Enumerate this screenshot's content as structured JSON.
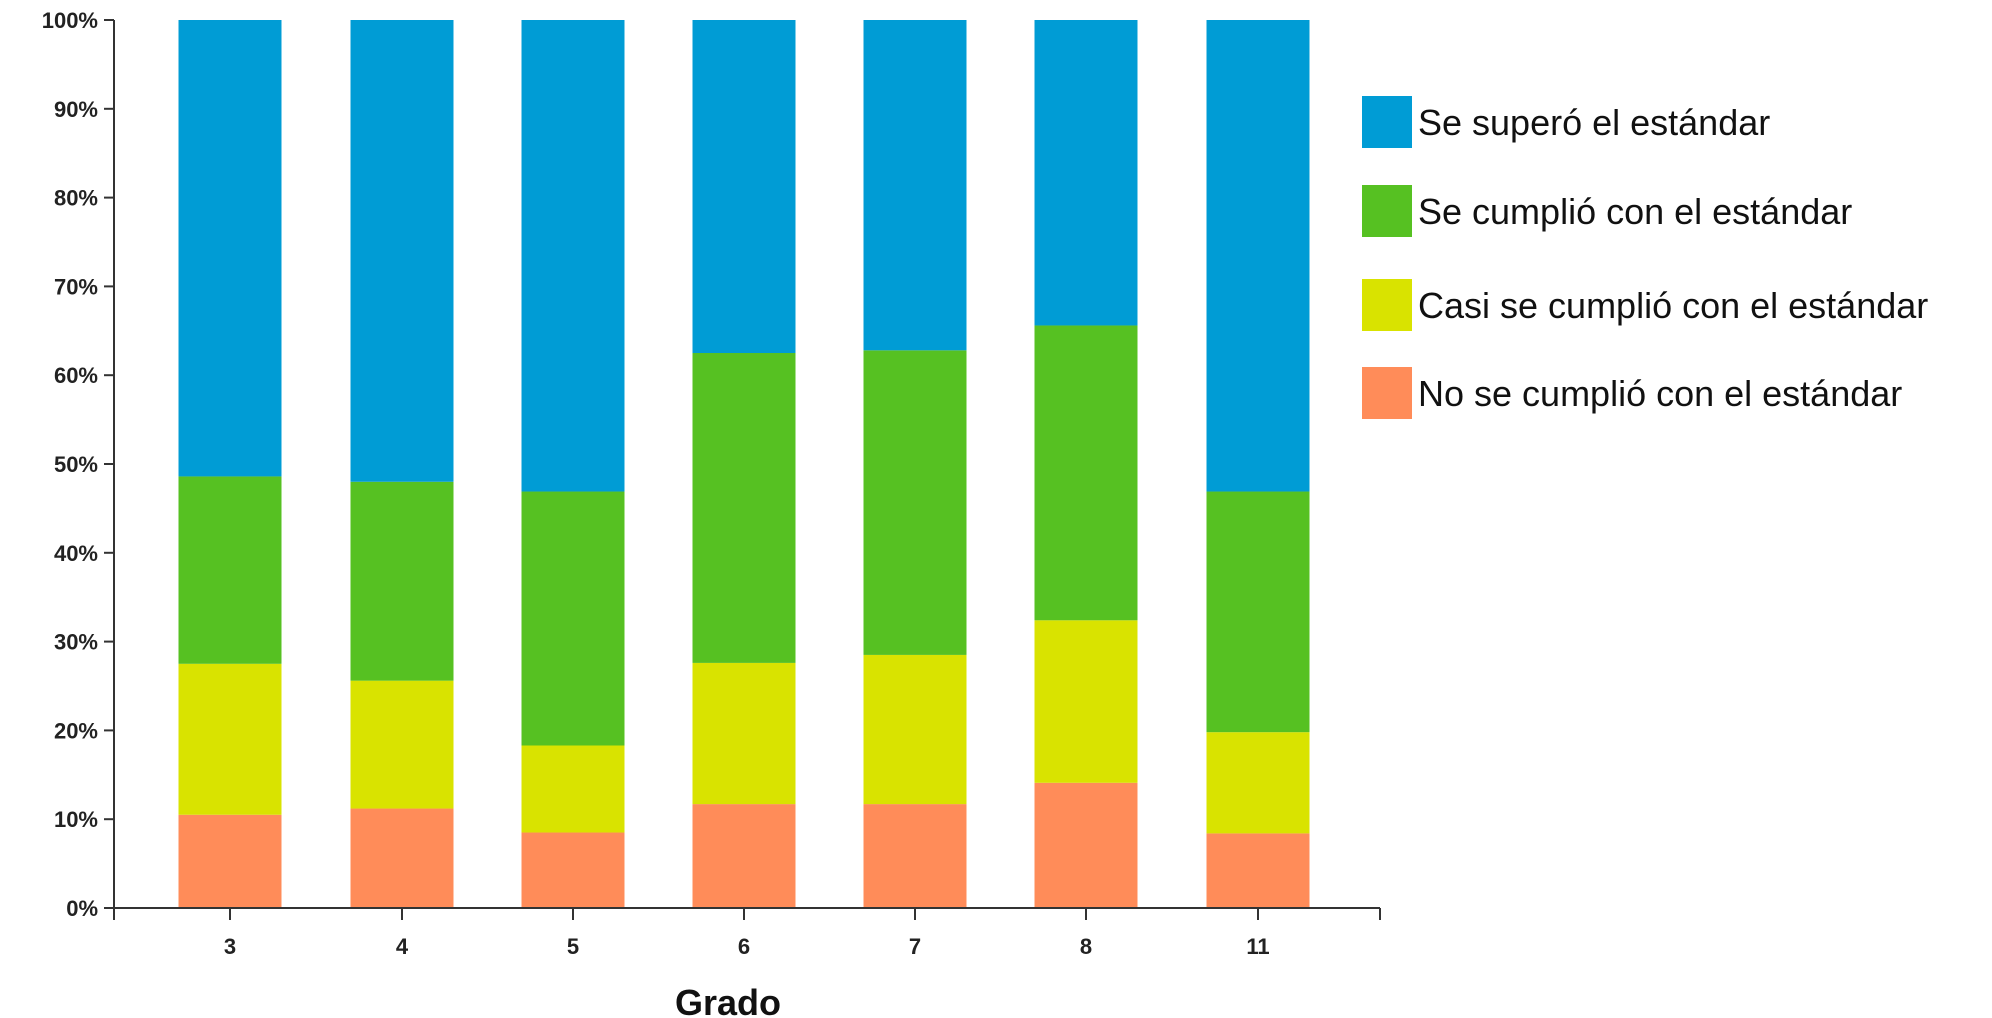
{
  "chart_data": {
    "type": "bar",
    "stacked": true,
    "categories": [
      "3",
      "4",
      "5",
      "6",
      "7",
      "8",
      "11"
    ],
    "xlabel": "Grado",
    "ylabel": "",
    "ylim": [
      0,
      100
    ],
    "y_ticks": [
      "0%",
      "10%",
      "20%",
      "30%",
      "40%",
      "50%",
      "60%",
      "70%",
      "80%",
      "90%",
      "100%"
    ],
    "legend_position": "right",
    "series": [
      {
        "name": "No se cumplió con el estándar",
        "color": "#FF8C59",
        "values": [
          10.5,
          11.2,
          8.5,
          11.7,
          11.7,
          14.1,
          8.4
        ]
      },
      {
        "name": "Casi se cumplió con el estándar",
        "color": "#D9E300",
        "values": [
          17.0,
          14.4,
          9.8,
          15.9,
          16.8,
          18.3,
          11.4
        ]
      },
      {
        "name": "Se cumplió con el estándar",
        "color": "#56C122",
        "values": [
          21.1,
          22.4,
          28.6,
          34.9,
          34.3,
          33.2,
          27.1
        ]
      },
      {
        "name": "Se superó el estándar",
        "color": "#009CD5",
        "values": [
          51.4,
          52.0,
          53.1,
          37.5,
          37.2,
          34.4,
          53.1
        ]
      }
    ],
    "legend_order": [
      3,
      2,
      1,
      0
    ]
  }
}
